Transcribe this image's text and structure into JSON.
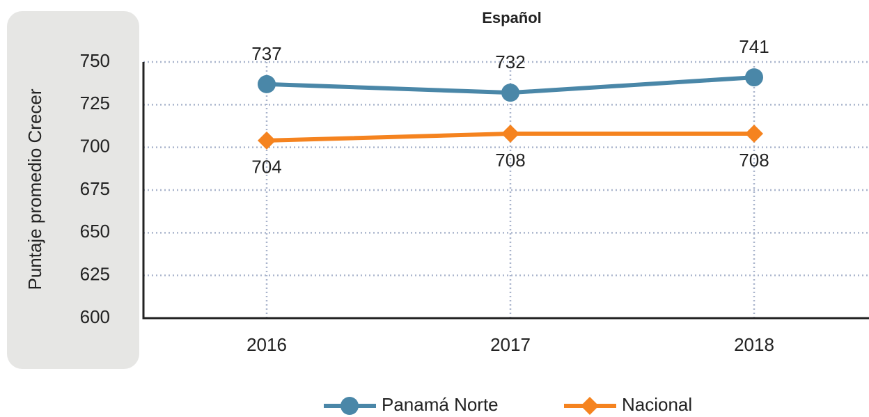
{
  "chart_data": {
    "type": "line",
    "title": "Español",
    "y_label": "Puntaje promedio Crecer",
    "categories": [
      "2016",
      "2017",
      "2018"
    ],
    "series": [
      {
        "name": "Panamá Norte",
        "color": "#4a87a8",
        "marker": "circle",
        "values": [
          737,
          732,
          741
        ]
      },
      {
        "name": "Nacional",
        "color": "#f5831f",
        "marker": "diamond",
        "values": [
          704,
          708,
          708
        ]
      }
    ],
    "ylim": [
      600,
      750
    ],
    "yticks": [
      600,
      625,
      650,
      675,
      700,
      725,
      750
    ],
    "grid": true,
    "legend": "bottom"
  }
}
